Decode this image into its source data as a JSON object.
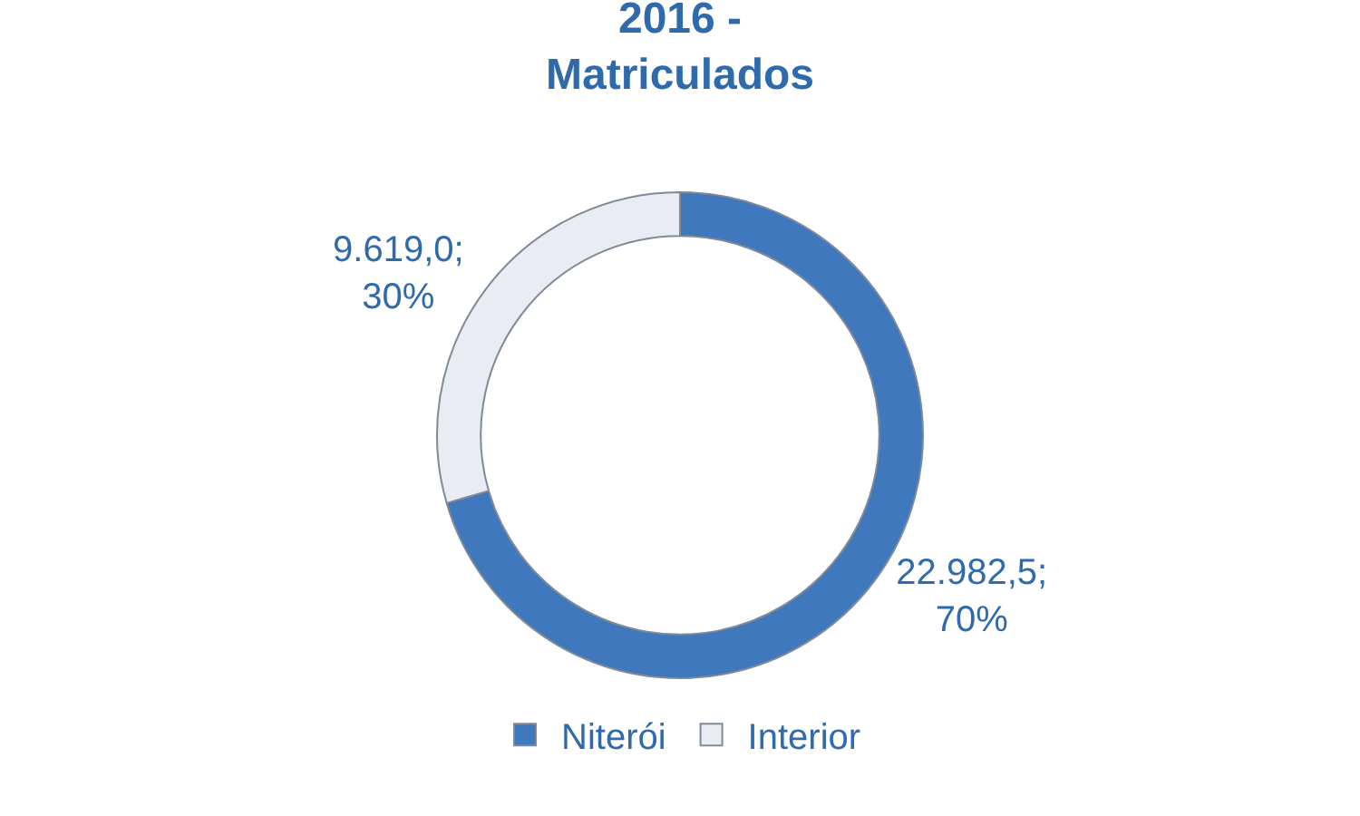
{
  "chart_data": {
    "type": "donut",
    "title": "2016 -\nMatriculados",
    "categories": [
      "Niterói",
      "Interior"
    ],
    "values": [
      22982.5,
      9619.0
    ],
    "value_labels": [
      "22.982,5;\n70%",
      "9.619,0;\n30%"
    ],
    "colors": [
      "#3f78bd",
      "#e9edf3"
    ],
    "legend": "bottom"
  }
}
